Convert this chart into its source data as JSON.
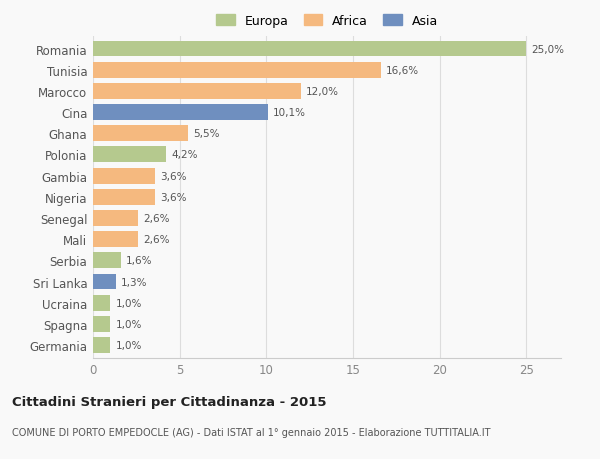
{
  "countries": [
    "Romania",
    "Tunisia",
    "Marocco",
    "Cina",
    "Ghana",
    "Polonia",
    "Gambia",
    "Nigeria",
    "Senegal",
    "Mali",
    "Serbia",
    "Sri Lanka",
    "Ucraina",
    "Spagna",
    "Germania"
  ],
  "values": [
    25.0,
    16.6,
    12.0,
    10.1,
    5.5,
    4.2,
    3.6,
    3.6,
    2.6,
    2.6,
    1.6,
    1.3,
    1.0,
    1.0,
    1.0
  ],
  "labels": [
    "25,0%",
    "16,6%",
    "12,0%",
    "10,1%",
    "5,5%",
    "4,2%",
    "3,6%",
    "3,6%",
    "2,6%",
    "2,6%",
    "1,6%",
    "1,3%",
    "1,0%",
    "1,0%",
    "1,0%"
  ],
  "continents": [
    "Europa",
    "Africa",
    "Africa",
    "Asia",
    "Africa",
    "Europa",
    "Africa",
    "Africa",
    "Africa",
    "Africa",
    "Europa",
    "Asia",
    "Europa",
    "Europa",
    "Europa"
  ],
  "colors": {
    "Europa": "#b5c98e",
    "Africa": "#f5b97f",
    "Asia": "#6f8fbf"
  },
  "legend_labels": [
    "Europa",
    "Africa",
    "Asia"
  ],
  "legend_colors": [
    "#b5c98e",
    "#f5b97f",
    "#6f8fbf"
  ],
  "xlim": [
    0,
    27
  ],
  "xticks": [
    0,
    5,
    10,
    15,
    20,
    25
  ],
  "title": "Cittadini Stranieri per Cittadinanza - 2015",
  "subtitle": "COMUNE DI PORTO EMPEDOCLE (AG) - Dati ISTAT al 1° gennaio 2015 - Elaborazione TUTTITALIA.IT",
  "bg_color": "#f9f9f9",
  "bar_height": 0.75
}
